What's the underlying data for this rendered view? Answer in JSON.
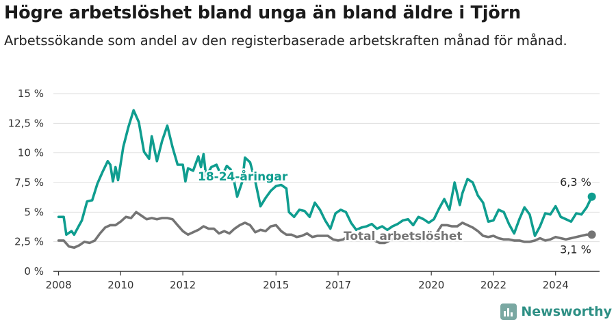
{
  "title": "Högre arbetslöshet bland unga än bland äldre i Tjörn",
  "subtitle": "Arbetssökande som andel av den registerbaserade arbetskraften månad för månad.",
  "brand": {
    "name": "Newsworthy",
    "icon": "newsworthy-logo-icon"
  },
  "colors": {
    "youth": "#0f9d8f",
    "total": "#747474",
    "grid": "#dddddd",
    "axis": "#333333"
  },
  "chart_data": {
    "type": "line",
    "title": "Högre arbetslöshet bland unga än bland äldre i Tjörn",
    "subtitle": "Arbetssökande som andel av den registerbaserade arbetskraften månad för månad.",
    "xlabel": "",
    "ylabel": "",
    "x_ticks": [
      "2008",
      "2010",
      "2012",
      "2015",
      "2017",
      "2020",
      "2022",
      "2024"
    ],
    "y_ticks": [
      "0 %",
      "2,5 %",
      "5 %",
      "7,5 %",
      "10 %",
      "12,5 %",
      "15 %"
    ],
    "ylim": [
      0,
      15
    ],
    "xlim": [
      "2007-11",
      "2025-06"
    ],
    "grid": "horizontal",
    "series": [
      {
        "name": "18-24-åringar",
        "end_label": "6,3 %",
        "points": [
          [
            "2008-01",
            4.6
          ],
          [
            "2008-03",
            4.6
          ],
          [
            "2008-04",
            3.1
          ],
          [
            "2008-06",
            3.4
          ],
          [
            "2008-07",
            3.1
          ],
          [
            "2008-09",
            3.9
          ],
          [
            "2008-10",
            4.3
          ],
          [
            "2008-12",
            5.9
          ],
          [
            "2009-02",
            6.0
          ],
          [
            "2009-04",
            7.4
          ],
          [
            "2009-06",
            8.4
          ],
          [
            "2009-08",
            9.3
          ],
          [
            "2009-09",
            9.0
          ],
          [
            "2009-10",
            7.6
          ],
          [
            "2009-11",
            8.8
          ],
          [
            "2009-12",
            7.7
          ],
          [
            "2010-02",
            10.5
          ],
          [
            "2010-04",
            12.2
          ],
          [
            "2010-06",
            13.6
          ],
          [
            "2010-08",
            12.6
          ],
          [
            "2010-10",
            10.1
          ],
          [
            "2010-12",
            9.5
          ],
          [
            "2011-01",
            11.4
          ],
          [
            "2011-03",
            9.3
          ],
          [
            "2011-05",
            11.0
          ],
          [
            "2011-07",
            12.3
          ],
          [
            "2011-09",
            10.5
          ],
          [
            "2011-11",
            9.0
          ],
          [
            "2012-01",
            9.0
          ],
          [
            "2012-02",
            7.6
          ],
          [
            "2012-03",
            8.7
          ],
          [
            "2012-05",
            8.5
          ],
          [
            "2012-07",
            9.7
          ],
          [
            "2012-08",
            8.8
          ],
          [
            "2012-09",
            9.9
          ],
          [
            "2012-10",
            8.0
          ],
          [
            "2012-12",
            8.8
          ],
          [
            "2013-02",
            9.0
          ],
          [
            "2013-04",
            8.0
          ],
          [
            "2013-06",
            8.9
          ],
          [
            "2013-08",
            8.5
          ],
          [
            "2013-10",
            6.3
          ],
          [
            "2013-12",
            7.6
          ],
          [
            "2014-01",
            9.6
          ],
          [
            "2014-03",
            9.2
          ],
          [
            "2014-05",
            7.6
          ],
          [
            "2014-07",
            5.5
          ],
          [
            "2014-09",
            6.2
          ],
          [
            "2014-11",
            6.8
          ],
          [
            "2015-01",
            7.2
          ],
          [
            "2015-03",
            7.3
          ],
          [
            "2015-05",
            7.0
          ],
          [
            "2015-06",
            5.0
          ],
          [
            "2015-08",
            4.6
          ],
          [
            "2015-10",
            5.2
          ],
          [
            "2015-12",
            5.1
          ],
          [
            "2016-02",
            4.6
          ],
          [
            "2016-04",
            5.8
          ],
          [
            "2016-06",
            5.2
          ],
          [
            "2016-08",
            4.3
          ],
          [
            "2016-10",
            3.6
          ],
          [
            "2016-12",
            4.9
          ],
          [
            "2017-02",
            5.2
          ],
          [
            "2017-04",
            5.0
          ],
          [
            "2017-06",
            4.1
          ],
          [
            "2017-08",
            3.5
          ],
          [
            "2017-10",
            3.7
          ],
          [
            "2017-12",
            3.8
          ],
          [
            "2018-02",
            4.0
          ],
          [
            "2018-04",
            3.6
          ],
          [
            "2018-06",
            3.8
          ],
          [
            "2018-08",
            3.5
          ],
          [
            "2018-10",
            3.8
          ],
          [
            "2018-12",
            4.0
          ],
          [
            "2019-02",
            4.3
          ],
          [
            "2019-04",
            4.4
          ],
          [
            "2019-06",
            3.9
          ],
          [
            "2019-08",
            4.6
          ],
          [
            "2019-10",
            4.4
          ],
          [
            "2019-12",
            4.1
          ],
          [
            "2020-02",
            4.4
          ],
          [
            "2020-04",
            5.3
          ],
          [
            "2020-06",
            6.1
          ],
          [
            "2020-08",
            5.2
          ],
          [
            "2020-10",
            7.5
          ],
          [
            "2020-12",
            5.6
          ],
          [
            "2021-01",
            6.6
          ],
          [
            "2021-03",
            7.8
          ],
          [
            "2021-05",
            7.5
          ],
          [
            "2021-07",
            6.4
          ],
          [
            "2021-09",
            5.8
          ],
          [
            "2021-11",
            4.2
          ],
          [
            "2022-01",
            4.3
          ],
          [
            "2022-03",
            5.2
          ],
          [
            "2022-05",
            5.0
          ],
          [
            "2022-07",
            4.0
          ],
          [
            "2022-09",
            3.2
          ],
          [
            "2022-11",
            4.4
          ],
          [
            "2023-01",
            5.4
          ],
          [
            "2023-03",
            4.8
          ],
          [
            "2023-05",
            3.0
          ],
          [
            "2023-07",
            3.8
          ],
          [
            "2023-09",
            4.9
          ],
          [
            "2023-11",
            4.8
          ],
          [
            "2024-01",
            5.5
          ],
          [
            "2024-03",
            4.6
          ],
          [
            "2024-05",
            4.4
          ],
          [
            "2024-07",
            4.2
          ],
          [
            "2024-09",
            4.9
          ],
          [
            "2024-11",
            4.8
          ],
          [
            "2025-01",
            5.4
          ],
          [
            "2025-03",
            6.3
          ]
        ]
      },
      {
        "name": "Total arbetslöshet",
        "end_label": "3,1 %",
        "points": [
          [
            "2008-01",
            2.6
          ],
          [
            "2008-03",
            2.6
          ],
          [
            "2008-05",
            2.1
          ],
          [
            "2008-07",
            2.0
          ],
          [
            "2008-09",
            2.2
          ],
          [
            "2008-11",
            2.5
          ],
          [
            "2009-01",
            2.4
          ],
          [
            "2009-03",
            2.6
          ],
          [
            "2009-05",
            3.2
          ],
          [
            "2009-07",
            3.7
          ],
          [
            "2009-09",
            3.9
          ],
          [
            "2009-11",
            3.9
          ],
          [
            "2010-01",
            4.2
          ],
          [
            "2010-03",
            4.6
          ],
          [
            "2010-05",
            4.5
          ],
          [
            "2010-07",
            5.0
          ],
          [
            "2010-09",
            4.7
          ],
          [
            "2010-11",
            4.4
          ],
          [
            "2011-01",
            4.5
          ],
          [
            "2011-03",
            4.4
          ],
          [
            "2011-05",
            4.5
          ],
          [
            "2011-07",
            4.5
          ],
          [
            "2011-09",
            4.4
          ],
          [
            "2011-11",
            3.9
          ],
          [
            "2012-01",
            3.4
          ],
          [
            "2012-03",
            3.1
          ],
          [
            "2012-05",
            3.3
          ],
          [
            "2012-07",
            3.5
          ],
          [
            "2012-09",
            3.8
          ],
          [
            "2012-11",
            3.6
          ],
          [
            "2013-01",
            3.6
          ],
          [
            "2013-03",
            3.2
          ],
          [
            "2013-05",
            3.4
          ],
          [
            "2013-07",
            3.2
          ],
          [
            "2013-09",
            3.6
          ],
          [
            "2013-11",
            3.9
          ],
          [
            "2014-01",
            4.1
          ],
          [
            "2014-03",
            3.9
          ],
          [
            "2014-05",
            3.3
          ],
          [
            "2014-07",
            3.5
          ],
          [
            "2014-09",
            3.4
          ],
          [
            "2014-11",
            3.8
          ],
          [
            "2015-01",
            3.9
          ],
          [
            "2015-03",
            3.4
          ],
          [
            "2015-05",
            3.1
          ],
          [
            "2015-07",
            3.1
          ],
          [
            "2015-09",
            2.9
          ],
          [
            "2015-11",
            3.0
          ],
          [
            "2016-01",
            3.2
          ],
          [
            "2016-03",
            2.9
          ],
          [
            "2016-05",
            3.0
          ],
          [
            "2016-07",
            3.0
          ],
          [
            "2016-09",
            3.0
          ],
          [
            "2016-11",
            2.7
          ],
          [
            "2017-01",
            2.6
          ],
          [
            "2017-03",
            2.7
          ],
          [
            "2017-05",
            3.0
          ],
          [
            "2017-07",
            3.2
          ],
          [
            "2017-09",
            3.0
          ],
          [
            "2017-11",
            2.9
          ],
          [
            "2018-01",
            2.8
          ],
          [
            "2018-03",
            2.6
          ],
          [
            "2018-05",
            2.4
          ],
          [
            "2018-07",
            2.4
          ],
          [
            "2018-09",
            2.6
          ],
          [
            "2018-11",
            2.8
          ],
          [
            "2019-01",
            2.8
          ],
          [
            "2019-03",
            2.8
          ],
          [
            "2019-05",
            2.8
          ],
          [
            "2019-07",
            2.9
          ],
          [
            "2019-09",
            2.9
          ],
          [
            "2019-11",
            3.0
          ],
          [
            "2020-01",
            3.0
          ],
          [
            "2020-03",
            3.2
          ],
          [
            "2020-05",
            3.9
          ],
          [
            "2020-07",
            3.9
          ],
          [
            "2020-09",
            3.8
          ],
          [
            "2020-11",
            3.8
          ],
          [
            "2021-01",
            4.1
          ],
          [
            "2021-03",
            3.9
          ],
          [
            "2021-05",
            3.7
          ],
          [
            "2021-07",
            3.4
          ],
          [
            "2021-09",
            3.0
          ],
          [
            "2021-11",
            2.9
          ],
          [
            "2022-01",
            3.0
          ],
          [
            "2022-03",
            2.8
          ],
          [
            "2022-05",
            2.7
          ],
          [
            "2022-07",
            2.7
          ],
          [
            "2022-09",
            2.6
          ],
          [
            "2022-11",
            2.6
          ],
          [
            "2023-01",
            2.5
          ],
          [
            "2023-03",
            2.5
          ],
          [
            "2023-05",
            2.6
          ],
          [
            "2023-07",
            2.8
          ],
          [
            "2023-09",
            2.6
          ],
          [
            "2023-11",
            2.7
          ],
          [
            "2024-01",
            2.9
          ],
          [
            "2024-03",
            2.8
          ],
          [
            "2024-05",
            2.7
          ],
          [
            "2024-07",
            2.8
          ],
          [
            "2024-09",
            2.9
          ],
          [
            "2024-11",
            3.0
          ],
          [
            "2025-01",
            3.1
          ],
          [
            "2025-03",
            3.1
          ]
        ]
      }
    ]
  }
}
